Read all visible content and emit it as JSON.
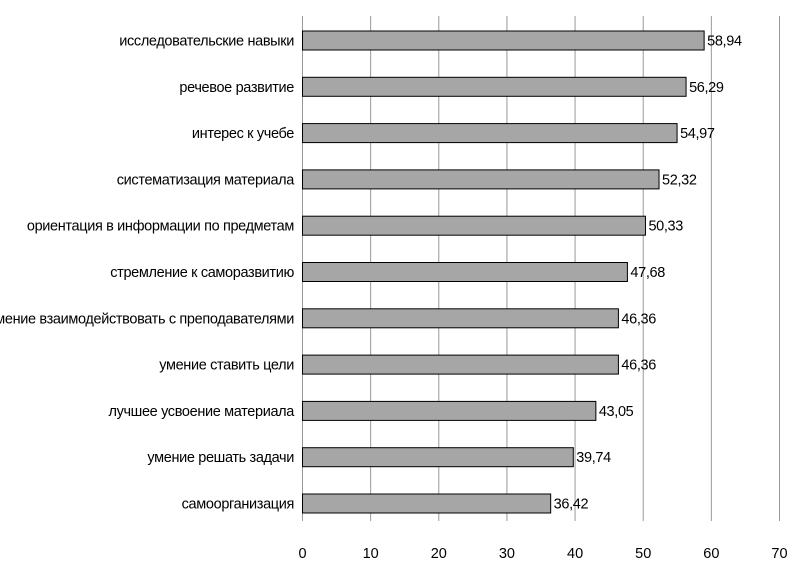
{
  "chart_data": {
    "type": "bar",
    "orientation": "horizontal",
    "categories": [
      "исследовательские навыки",
      "речевое развитие",
      "интерес к учебе",
      "систематизация материала",
      "ориентация в информации по предметам",
      "стремление к саморазвитию",
      "умение взаимодействовать с преподавателями",
      "умение ставить цели",
      "лучшее усвоение материала",
      "умение решать задачи",
      "самоорганизация"
    ],
    "values": [
      58.94,
      56.29,
      54.97,
      52.32,
      50.33,
      47.68,
      46.36,
      46.36,
      43.05,
      39.74,
      36.42
    ],
    "value_labels": [
      "58,94",
      "56,29",
      "54,97",
      "52,32",
      "50,33",
      "47,68",
      "46,36",
      "46,36",
      "43,05",
      "39,74",
      "36,42"
    ],
    "xlim": [
      0,
      70
    ],
    "x_ticks": [
      0,
      10,
      20,
      30,
      40,
      50,
      60,
      70
    ],
    "x_tick_labels": [
      "0",
      "10",
      "20",
      "30",
      "40",
      "50",
      "60",
      "70"
    ],
    "grid": "vertical",
    "bar_color": "#a6a6a6",
    "bar_edge_color": "#000000",
    "grid_color": "#999999",
    "title": "",
    "xlabel": "",
    "ylabel": ""
  }
}
